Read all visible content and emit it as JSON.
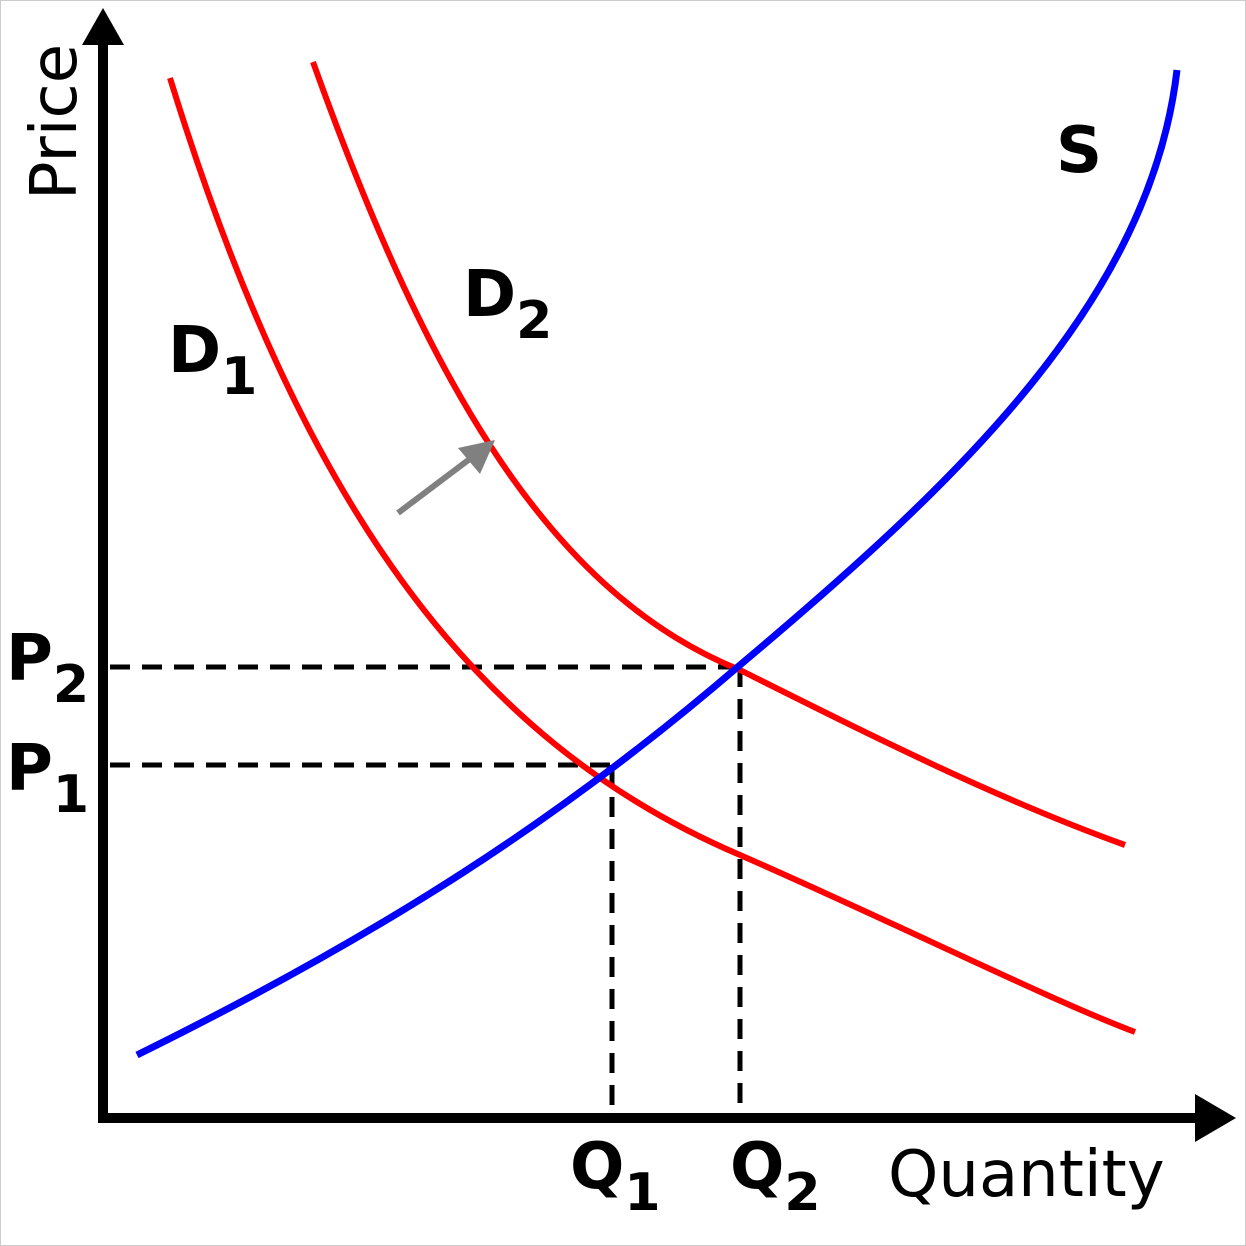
{
  "axes": {
    "y_label": "Price",
    "x_label": "Quantity"
  },
  "curves": {
    "supply": {
      "main": "S"
    },
    "demand_1": {
      "main": "D",
      "sub": "1"
    },
    "demand_2": {
      "main": "D",
      "sub": "2"
    }
  },
  "prices": [
    {
      "main": "P",
      "sub": "2"
    },
    {
      "main": "P",
      "sub": "1"
    }
  ],
  "quantities": [
    {
      "main": "Q",
      "sub": "1"
    },
    {
      "main": "Q",
      "sub": "2"
    }
  ]
}
